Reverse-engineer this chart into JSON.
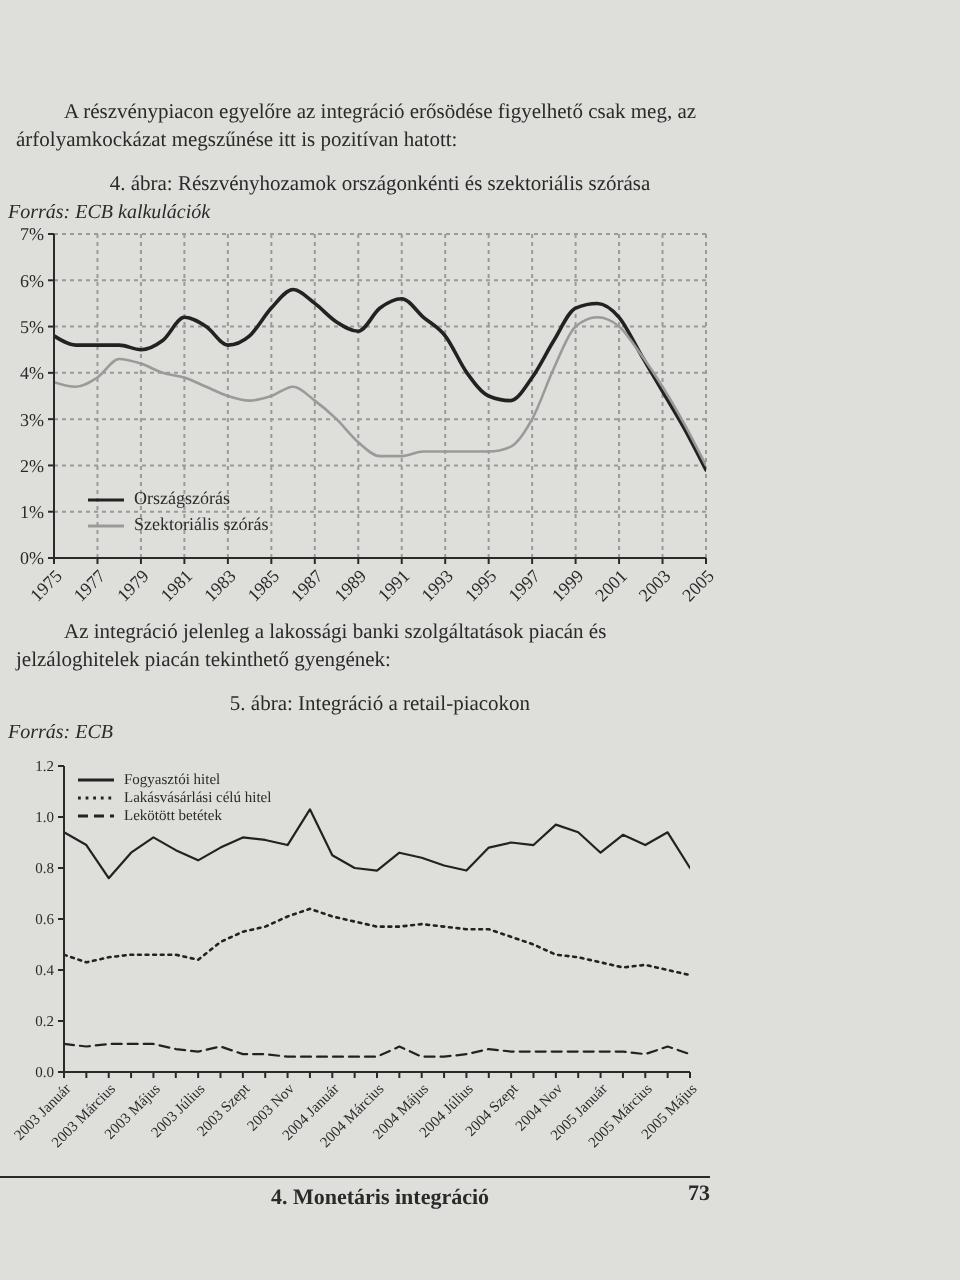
{
  "chart_data": [
    {
      "type": "line",
      "title": "4. ábra: Részvényhozamok országonkénti és szektoriális szórása",
      "annotations": [
        "A részvénypiacon egyelőre az integráció erősödése figyelhető csak meg, az árfolyamkockázat megszűnése itt is pozitívan hatott:",
        "Forrás: ECB kalkulációk"
      ],
      "x": [
        1975,
        1976,
        1977,
        1978,
        1979,
        1980,
        1981,
        1982,
        1983,
        1984,
        1985,
        1986,
        1987,
        1988,
        1989,
        1990,
        1991,
        1992,
        1993,
        1994,
        1995,
        1996,
        1997,
        1998,
        1999,
        2000,
        2001,
        2002,
        2003,
        2004,
        2005
      ],
      "series": [
        {
          "name": "Országszórás",
          "color": "#222222",
          "values": [
            4.8,
            4.6,
            4.6,
            4.6,
            4.5,
            4.7,
            5.2,
            5.0,
            4.6,
            4.8,
            5.4,
            5.8,
            5.5,
            5.1,
            4.9,
            5.4,
            5.6,
            5.2,
            4.8,
            4.0,
            3.5,
            3.4,
            3.9,
            4.7,
            5.4,
            5.5,
            5.2,
            4.4,
            3.6,
            2.8,
            1.9
          ]
        },
        {
          "name": "Szektoriális szórás",
          "color": "#9a9a9a",
          "values": [
            3.8,
            3.7,
            3.9,
            4.3,
            4.2,
            4.0,
            3.9,
            3.7,
            3.5,
            3.4,
            3.5,
            3.7,
            3.4,
            3.0,
            2.5,
            2.2,
            2.2,
            2.3,
            2.3,
            2.3,
            2.3,
            2.4,
            3.0,
            4.1,
            5.0,
            5.2,
            5.0,
            4.4,
            3.7,
            2.9,
            2.0
          ]
        }
      ],
      "xlim": [
        1975,
        2005
      ],
      "xticks": [
        1975,
        1977,
        1979,
        1981,
        1983,
        1985,
        1987,
        1989,
        1991,
        1993,
        1995,
        1997,
        1999,
        2001,
        2003,
        2005
      ],
      "ylim": [
        0,
        7
      ],
      "yticks": [
        {
          "value": 0,
          "label": "0%"
        },
        {
          "value": 1,
          "label": "1%"
        },
        {
          "value": 2,
          "label": "2%"
        },
        {
          "value": 3,
          "label": "3%"
        },
        {
          "value": 4,
          "label": "4%"
        },
        {
          "value": 5,
          "label": "5%"
        },
        {
          "value": 6,
          "label": "6%"
        },
        {
          "value": 7,
          "label": "7%"
        }
      ],
      "grid": true,
      "legend": "bottom left",
      "marker": "none"
    },
    {
      "type": "line",
      "title": "5. ábra: Integráció a retail-piacokon",
      "annotations": [
        "Az integráció jelenleg a lakossági banki szolgáltatások piacán és jelzáloghitelek piacán tekinthető gyengének:",
        "Forrás: ECB",
        "4. Monetáris integráció",
        "73"
      ],
      "categories": [
        "2003 Január",
        null,
        "2003 Március",
        null,
        "2003 Május",
        null,
        "2003 Július",
        null,
        "2003 Szept",
        null,
        "2003 Nov",
        null,
        "2004 Január",
        null,
        "2004 Március",
        null,
        "2004 Május",
        null,
        "2004 Július",
        null,
        "2004 Szept",
        null,
        "2004 Nov",
        null,
        "2005 Január",
        null,
        "2005 Március",
        null,
        "2005 Május"
      ],
      "series": [
        {
          "name": "Fogyasztói hitel",
          "color": "#222222",
          "line_style": "solid",
          "values": [
            0.94,
            0.89,
            0.76,
            0.86,
            0.92,
            0.87,
            0.83,
            0.88,
            0.92,
            0.91,
            0.89,
            1.03,
            0.85,
            0.8,
            0.79,
            0.86,
            0.84,
            0.81,
            0.79,
            0.88,
            0.9,
            0.89,
            0.97,
            0.94,
            0.86,
            0.93,
            0.89,
            0.94,
            0.8
          ]
        },
        {
          "name": "Lakásvásárlási célú hitel",
          "color": "#222222",
          "line_style": "dotted",
          "values": [
            0.46,
            0.43,
            0.45,
            0.46,
            0.46,
            0.46,
            0.44,
            0.51,
            0.55,
            0.57,
            0.61,
            0.64,
            0.61,
            0.59,
            0.57,
            0.57,
            0.58,
            0.57,
            0.56,
            0.56,
            0.53,
            0.5,
            0.46,
            0.45,
            0.43,
            0.41,
            0.42,
            0.4,
            0.38
          ]
        },
        {
          "name": "Lekötött betétek",
          "color": "#222222",
          "line_style": "dashed",
          "values": [
            0.11,
            0.1,
            0.11,
            0.11,
            0.11,
            0.09,
            0.08,
            0.1,
            0.07,
            0.07,
            0.06,
            0.06,
            0.06,
            0.06,
            0.06,
            0.1,
            0.06,
            0.06,
            0.07,
            0.09,
            0.08,
            0.08,
            0.08,
            0.08,
            0.08,
            0.08,
            0.07,
            0.1,
            0.07
          ]
        }
      ],
      "ylim": [
        0,
        1.2
      ],
      "yticks": [
        {
          "value": 0,
          "label": "0.0"
        },
        0.2,
        0.4,
        0.6,
        0.8,
        {
          "value": 1,
          "label": "1.0"
        },
        1.2
      ],
      "legend": "top left",
      "marker": "none"
    }
  ]
}
